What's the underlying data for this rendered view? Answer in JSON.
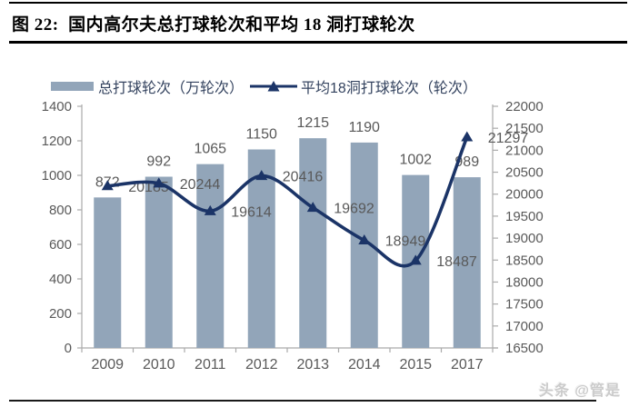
{
  "header": {
    "title": "图 22:  国内高尔夫总打球轮次和平均 18 洞打球轮次"
  },
  "legend": [
    {
      "label": "总打球轮次（万轮次）",
      "type": "bar",
      "color": "#92A5B9"
    },
    {
      "label": "平均18洞打球轮次（轮次）",
      "type": "line",
      "color": "#1B3467"
    }
  ],
  "watermark": "头条 @管是",
  "chart_data": {
    "type": "bar+line combo",
    "title": "国内高尔夫总打球轮次和平均18洞打球轮次",
    "categories": [
      "2009",
      "2010",
      "2011",
      "2012",
      "2013",
      "2014",
      "2015",
      "2017"
    ],
    "series": [
      {
        "name": "总打球轮次（万轮次）",
        "type": "bar",
        "axis": "left",
        "color": "#92A5B9",
        "values": [
          872,
          992,
          1065,
          1150,
          1215,
          1190,
          1002,
          989
        ]
      },
      {
        "name": "平均18洞打球轮次（轮次）",
        "type": "line",
        "axis": "right",
        "color": "#1B3467",
        "marker": "triangle-up",
        "smooth": true,
        "values": [
          20185,
          20244,
          19614,
          20416,
          19692,
          18949,
          18487,
          21297
        ]
      }
    ],
    "left_axis": {
      "min": 0,
      "max": 1400,
      "step": 200
    },
    "right_axis": {
      "min": 16500,
      "max": 22000,
      "step": 500
    },
    "grid": false,
    "legend_position": "top",
    "data_labels": true,
    "style": {
      "axis_color": "#ABABAB",
      "tick_label_color": "#595959",
      "data_label_color": "#595959"
    }
  }
}
